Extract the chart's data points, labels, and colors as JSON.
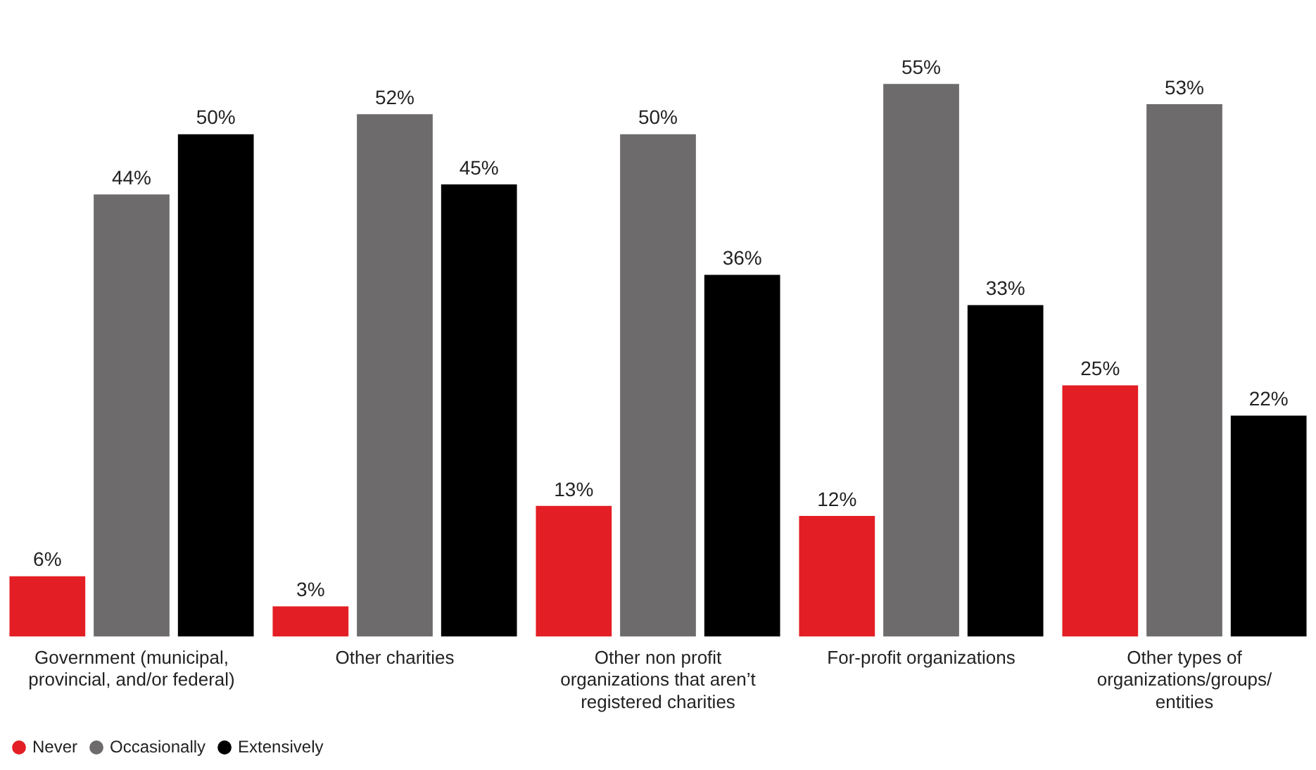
{
  "chart_data": {
    "type": "bar",
    "categories": [
      "Government (municipal, provincial, and/or federal)",
      "Other charities",
      "Other non profit organizations that aren’t registered charities",
      "For-profit organizations",
      "Other types of organizations/groups/ entities"
    ],
    "series": [
      {
        "name": "Never",
        "color": "#e31e24",
        "values": [
          6,
          3,
          13,
          12,
          25
        ],
        "value_labels": [
          "6%",
          "3%",
          "13%",
          "12%",
          "25%"
        ]
      },
      {
        "name": "Occasionally",
        "color": "#6d6b6c",
        "values": [
          44,
          52,
          50,
          55,
          53
        ],
        "value_labels": [
          "44%",
          "52%",
          "50%",
          "55%",
          "53%"
        ]
      },
      {
        "name": "Extensively",
        "color": "#000000",
        "values": [
          50,
          45,
          36,
          33,
          22
        ],
        "value_labels": [
          "50%",
          "45%",
          "36%",
          "33%",
          "22%"
        ]
      }
    ],
    "grid": false,
    "legend": "bottom left"
  }
}
